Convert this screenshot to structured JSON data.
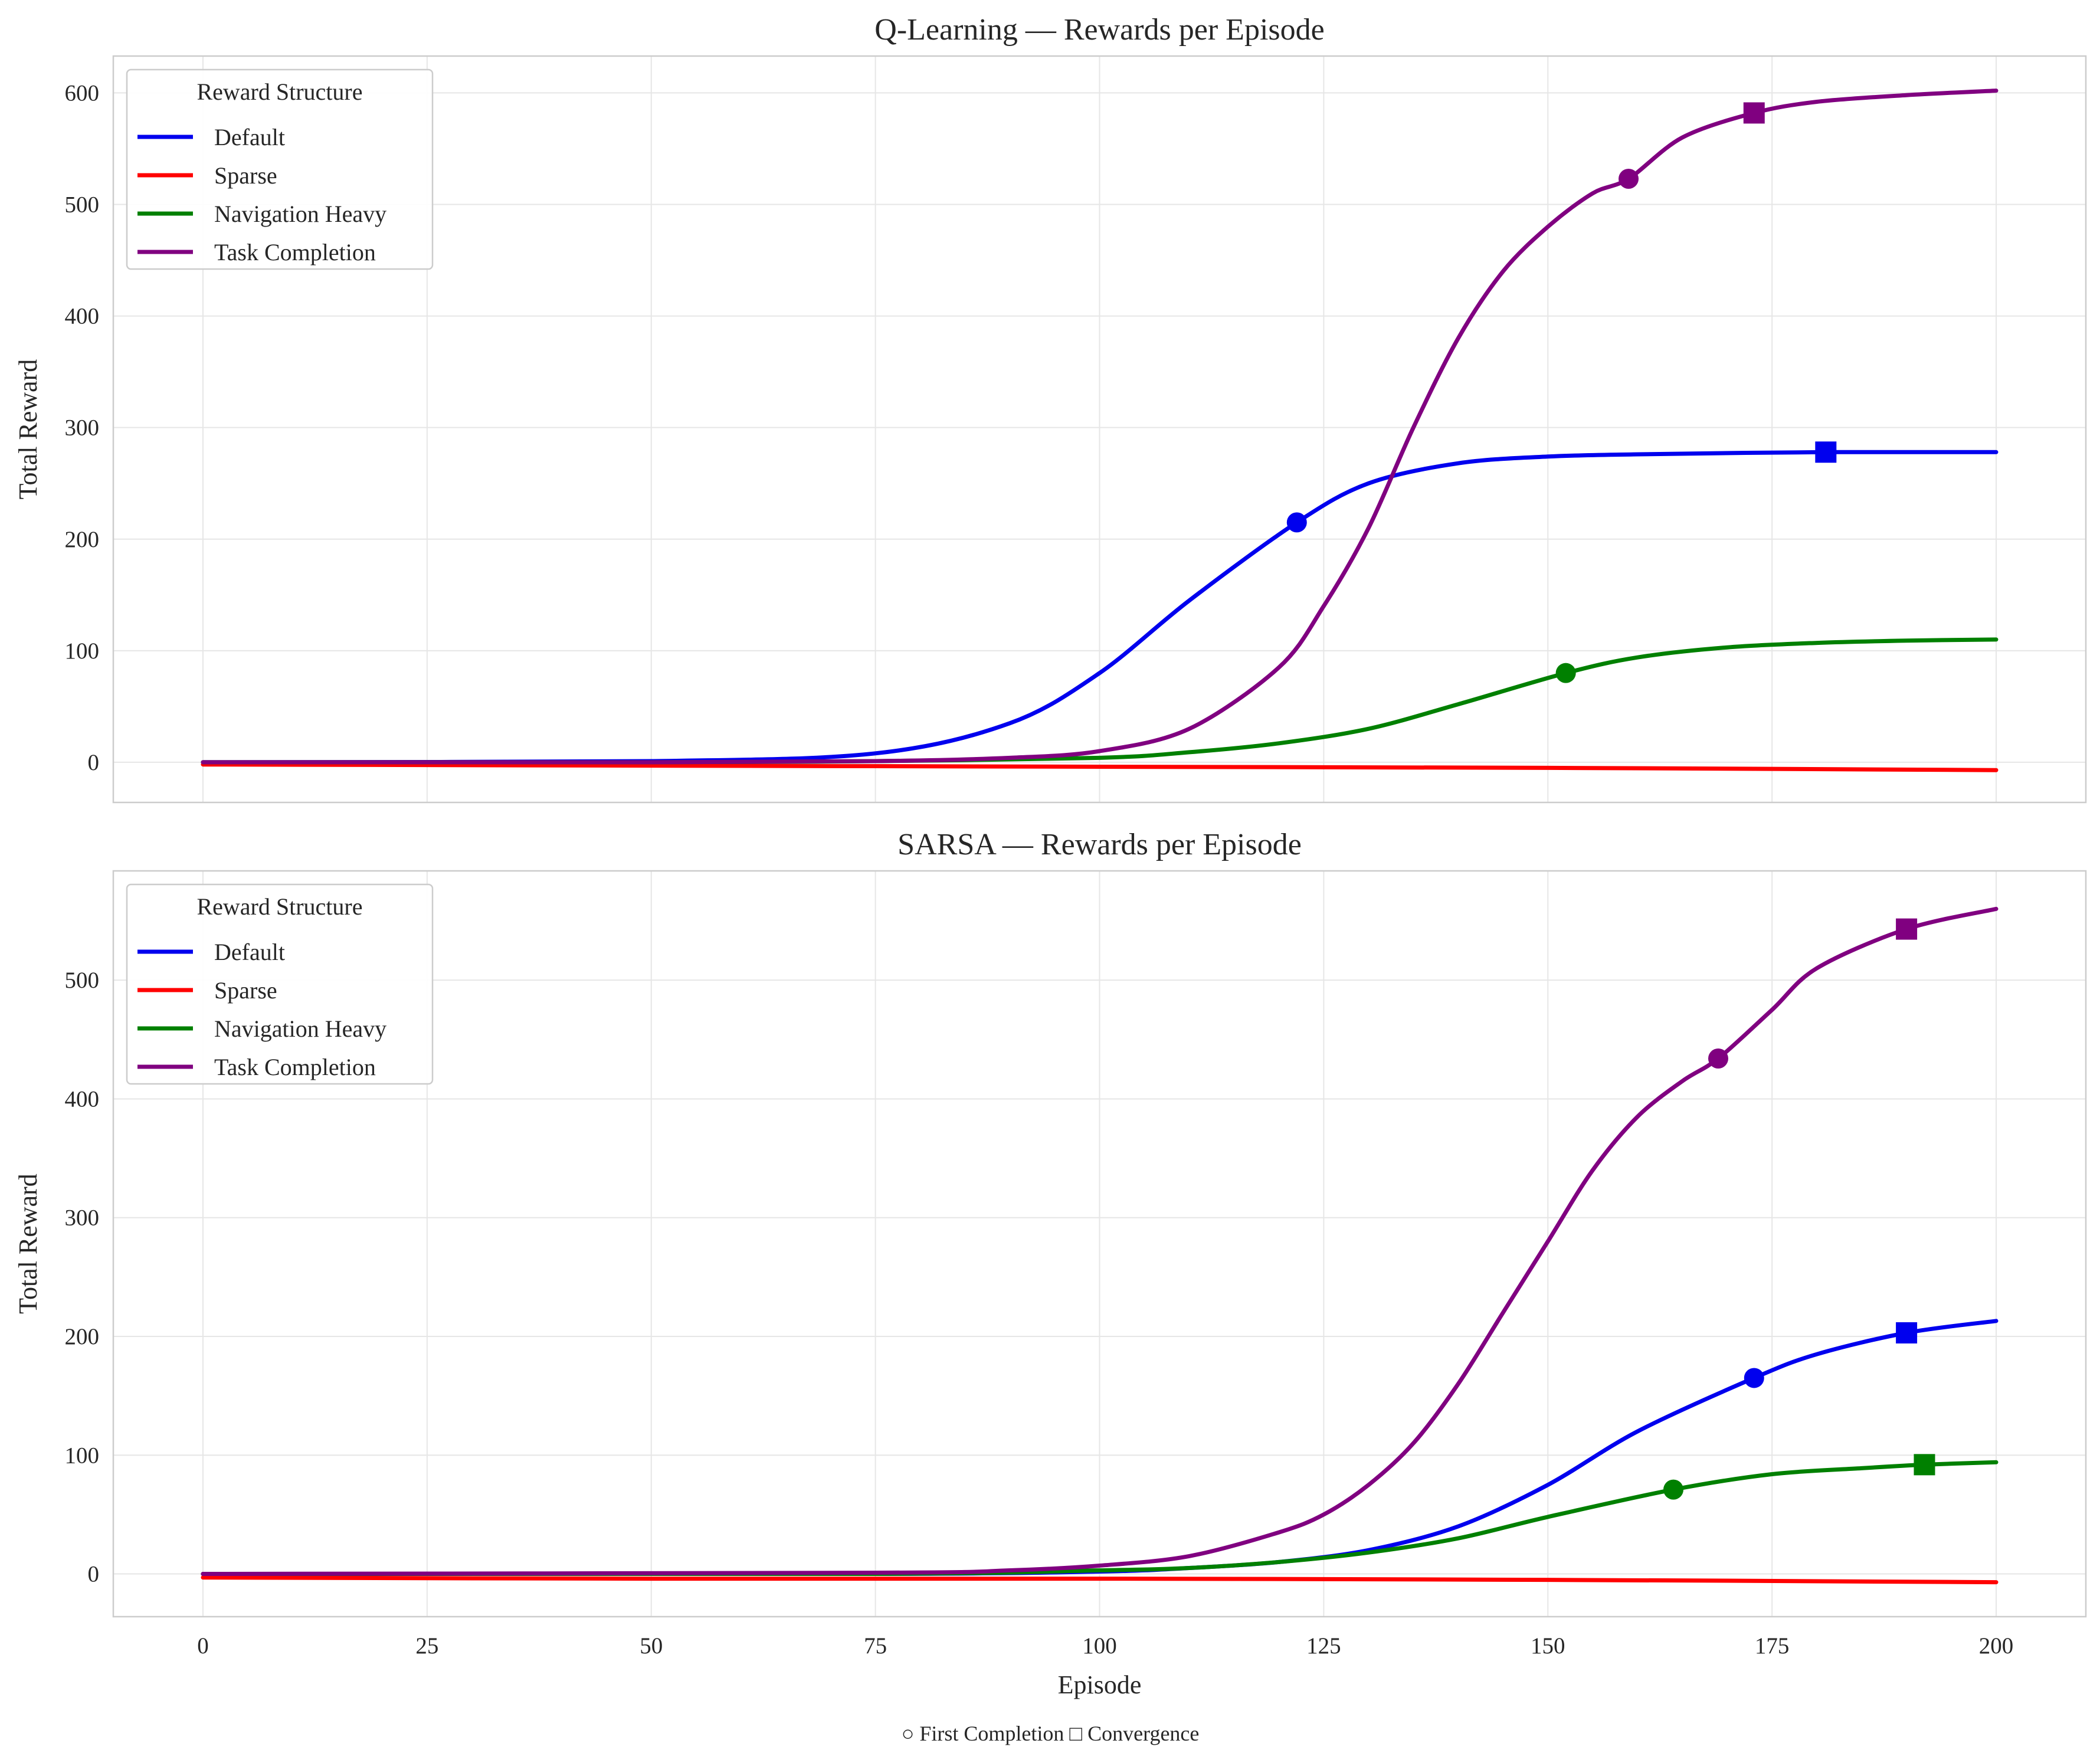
{
  "footnote": "○ First Completion   □ Convergence",
  "chart_data": [
    {
      "type": "line",
      "title": "Q-Learning — Rewards per Episode",
      "xlabel": "",
      "ylabel": "Total Reward",
      "xlim": [
        -10,
        210
      ],
      "ylim": [
        -36,
        633
      ],
      "xticks": [
        0,
        25,
        50,
        75,
        100,
        125,
        150,
        175,
        200
      ],
      "yticks": [
        0,
        100,
        200,
        300,
        400,
        500,
        600
      ],
      "show_xtick_labels": false,
      "grid": true,
      "legend": {
        "title": "Reward Structure",
        "position": "top-left"
      },
      "series": [
        {
          "name": "Default",
          "color": "#0000ee",
          "x": [
            0,
            50,
            75,
            90,
            100,
            110,
            122,
            130,
            140,
            150,
            160,
            181,
            200
          ],
          "y": [
            0,
            1,
            8,
            35,
            80,
            145,
            215,
            250,
            268,
            274,
            276,
            278,
            278
          ],
          "first_completion": {
            "x": 122,
            "y": 215
          },
          "convergence": {
            "x": 181,
            "y": 278
          }
        },
        {
          "name": "Sparse",
          "color": "#ff0000",
          "x": [
            0,
            50,
            100,
            150,
            200
          ],
          "y": [
            -2,
            -3,
            -4,
            -5,
            -7
          ]
        },
        {
          "name": "Navigation Heavy",
          "color": "#008000",
          "x": [
            0,
            50,
            75,
            100,
            110,
            120,
            130,
            140,
            152,
            160,
            170,
            180,
            190,
            200
          ],
          "y": [
            0,
            0,
            1,
            4,
            9,
            17,
            30,
            52,
            80,
            94,
            103,
            107,
            109,
            110
          ],
          "first_completion": {
            "x": 152,
            "y": 80
          }
        },
        {
          "name": "Task Completion",
          "color": "#800080",
          "x": [
            0,
            50,
            75,
            90,
            100,
            110,
            120,
            125,
            130,
            135,
            140,
            145,
            150,
            155,
            159,
            165,
            173,
            180,
            190,
            200
          ],
          "y": [
            0,
            0,
            1,
            4,
            10,
            30,
            85,
            140,
            210,
            300,
            380,
            440,
            480,
            510,
            523,
            560,
            582,
            592,
            598,
            602
          ],
          "first_completion": {
            "x": 159,
            "y": 523
          },
          "convergence": {
            "x": 173,
            "y": 582
          }
        }
      ]
    },
    {
      "type": "line",
      "title": "SARSA — Rewards per Episode",
      "xlabel": "Episode",
      "ylabel": "Total Reward",
      "xlim": [
        -10,
        210
      ],
      "ylim": [
        -36,
        592
      ],
      "xticks": [
        0,
        25,
        50,
        75,
        100,
        125,
        150,
        175,
        200
      ],
      "yticks": [
        0,
        100,
        200,
        300,
        400,
        500
      ],
      "show_xtick_labels": true,
      "grid": true,
      "legend": {
        "title": "Reward Structure",
        "position": "top-left"
      },
      "series": [
        {
          "name": "Default",
          "color": "#0000ee",
          "x": [
            0,
            75,
            100,
            110,
            120,
            130,
            140,
            150,
            160,
            173,
            180,
            190,
            200
          ],
          "y": [
            0,
            0,
            2,
            5,
            10,
            20,
            40,
            75,
            120,
            165,
            185,
            203,
            213
          ],
          "first_completion": {
            "x": 173,
            "y": 165
          },
          "convergence": {
            "x": 190,
            "y": 203
          }
        },
        {
          "name": "Sparse",
          "color": "#ff0000",
          "x": [
            0,
            50,
            100,
            150,
            200
          ],
          "y": [
            -3,
            -4,
            -4,
            -5,
            -7
          ]
        },
        {
          "name": "Navigation Heavy",
          "color": "#008000",
          "x": [
            0,
            75,
            100,
            110,
            120,
            130,
            140,
            150,
            164,
            175,
            185,
            192,
            200
          ],
          "y": [
            0,
            0,
            3,
            5,
            10,
            18,
            30,
            48,
            71,
            84,
            89,
            92,
            94
          ],
          "first_completion": {
            "x": 164,
            "y": 71
          },
          "convergence": {
            "x": 192,
            "y": 92
          }
        },
        {
          "name": "Task Completion",
          "color": "#800080",
          "x": [
            0,
            75,
            90,
            100,
            110,
            120,
            125,
            130,
            135,
            140,
            145,
            150,
            155,
            160,
            165,
            169,
            175,
            180,
            190,
            200
          ],
          "y": [
            0,
            1,
            3,
            7,
            15,
            35,
            50,
            75,
            110,
            160,
            220,
            280,
            340,
            385,
            415,
            434,
            475,
            510,
            543,
            560
          ],
          "first_completion": {
            "x": 169,
            "y": 434
          },
          "convergence": {
            "x": 190,
            "y": 543
          }
        }
      ]
    }
  ]
}
